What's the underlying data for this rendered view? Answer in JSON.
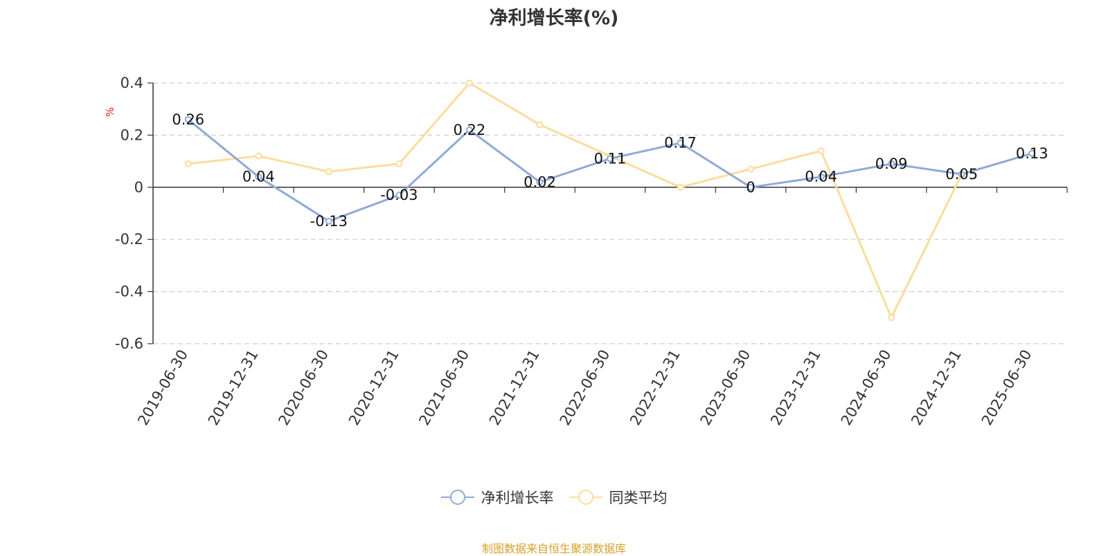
{
  "chart_data": {
    "type": "line",
    "title": "净利增长率(%)",
    "ylabel": "%",
    "categories": [
      "2019-06-30",
      "2019-12-31",
      "2020-06-30",
      "2020-12-31",
      "2021-06-30",
      "2021-12-31",
      "2022-06-30",
      "2022-12-31",
      "2023-06-30",
      "2023-12-31",
      "2024-06-30",
      "2024-12-31",
      "2025-06-30"
    ],
    "series": [
      {
        "name": "净利增长率",
        "color": "#8eaad6",
        "values": [
          0.26,
          0.04,
          -0.13,
          -0.03,
          0.22,
          0.02,
          0.11,
          0.17,
          0,
          0.04,
          0.09,
          0.05,
          0.13
        ],
        "labels": [
          "0.26",
          "0.04",
          "-0.13",
          "-0.03",
          "0.22",
          "0.02",
          "0.11",
          "0.17",
          "0",
          "0.04",
          "0.09",
          "0.05",
          "0.13"
        ]
      },
      {
        "name": "同类平均",
        "color": "#fcdc9b",
        "values": [
          0.09,
          0.12,
          0.06,
          0.09,
          0.4,
          0.24,
          0.12,
          0.0,
          0.07,
          0.14,
          -0.5,
          0.05,
          0.13
        ]
      }
    ],
    "ylim": [
      -0.6,
      0.4
    ],
    "yticks": [
      0.4,
      0.2,
      0,
      -0.2,
      -0.4,
      -0.6
    ],
    "ytick_labels": [
      "0.4",
      "0.2",
      "0",
      "-0.2",
      "-0.4",
      "-0.6"
    ],
    "grid": true,
    "legend_position": "bottom-center"
  },
  "footer": {
    "source": "制图数据来自恒生聚源数据库",
    "source_color": "#d4a22a"
  }
}
